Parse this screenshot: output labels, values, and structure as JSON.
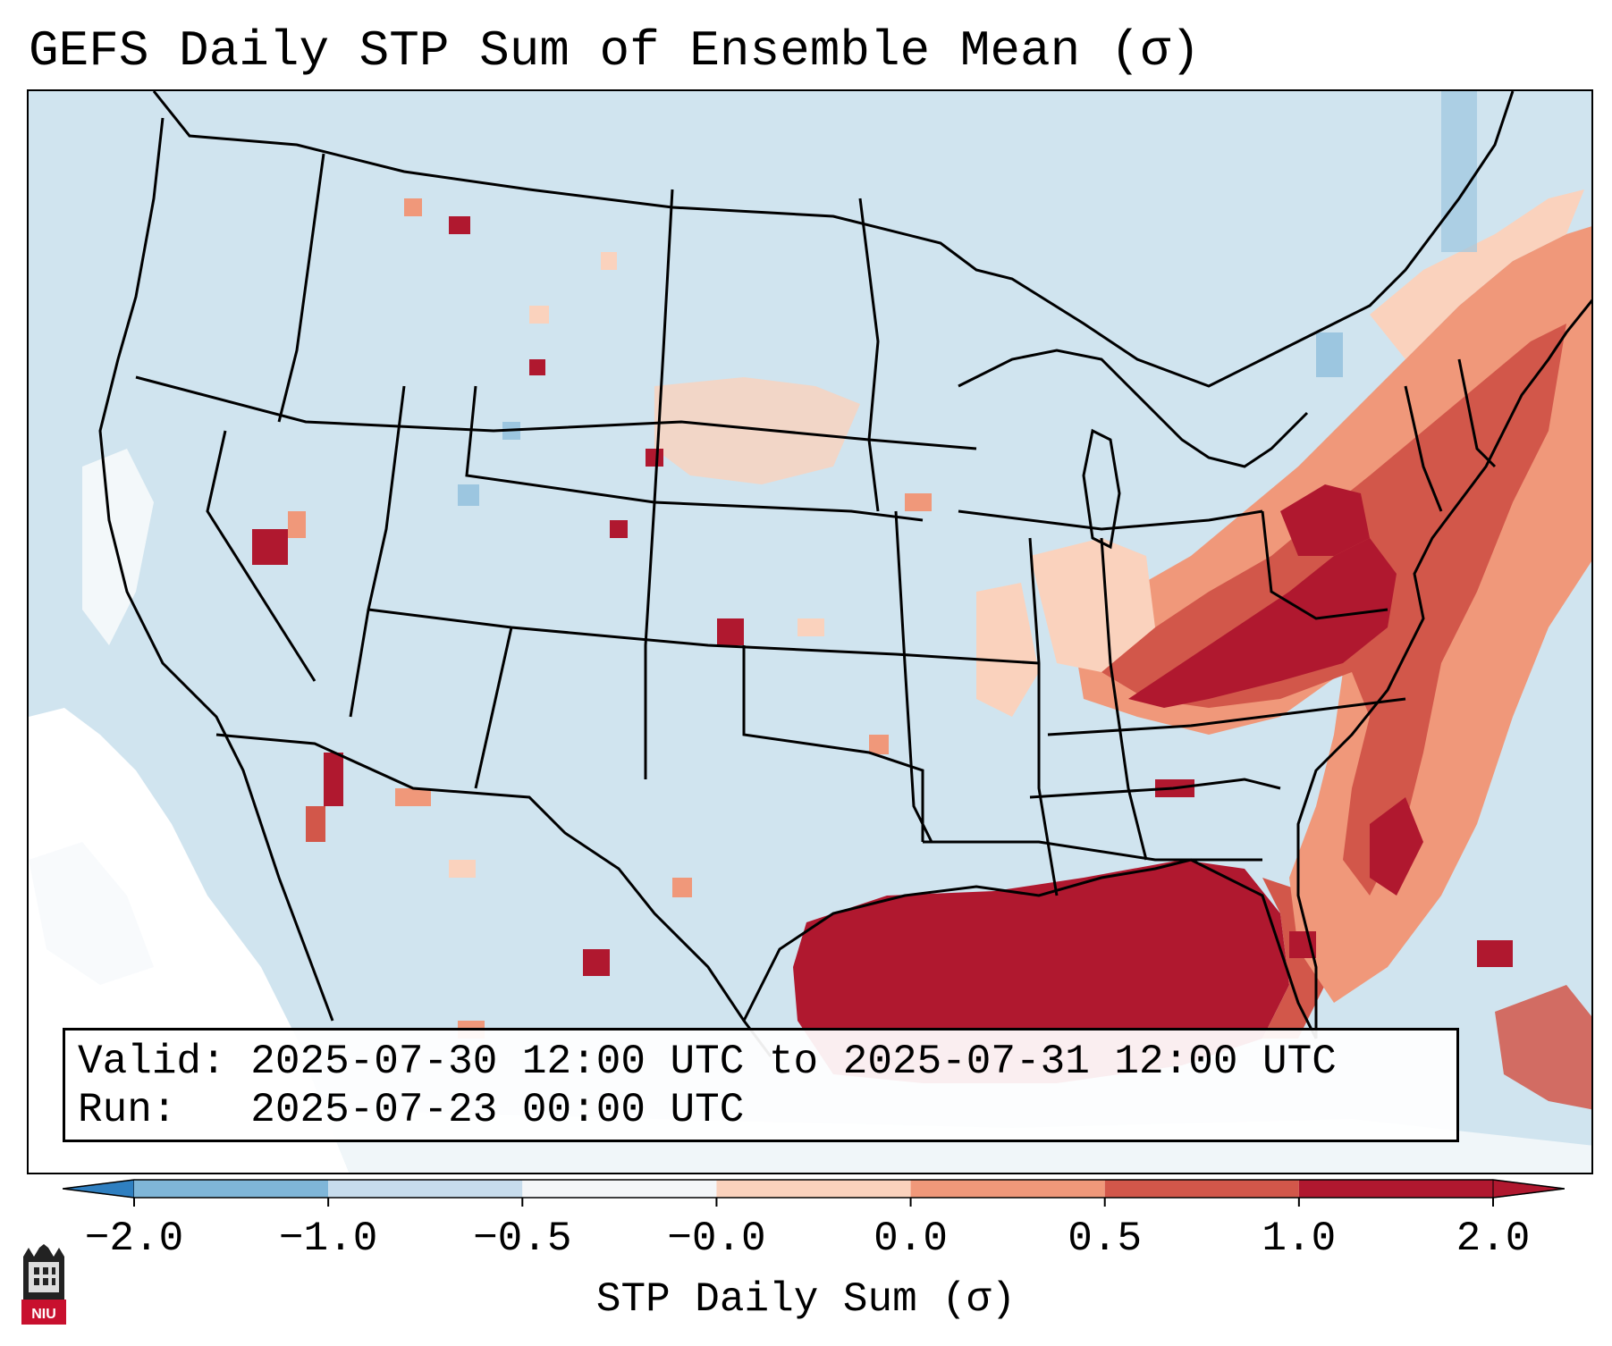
{
  "title": "GEFS Daily STP Sum of Ensemble Mean (σ)",
  "info": {
    "valid_label": "Valid:",
    "valid_value": "2025-07-30 12:00 UTC to 2025-07-31 12:00 UTC",
    "run_label": "Run:",
    "run_value": "2025-07-23 00:00 UTC"
  },
  "colorbar": {
    "label": "STP Daily Sum (σ)",
    "ticks": [
      "−2.0",
      "−1.0",
      "−0.5",
      "−0.0",
      "0.0",
      "0.5",
      "1.0",
      "2.0"
    ],
    "colors": [
      "#2f7fc0",
      "#7fb6d8",
      "#c7dcec",
      "#f4f6f8",
      "#fad2bd",
      "#f0987a",
      "#d2574a",
      "#b0182f"
    ],
    "extend": "both"
  },
  "map": {
    "projection": "Lambert conformal, CONUS",
    "ocean_color": "#d0e4ef",
    "region_labels": []
  },
  "logo": {
    "text": "NIU"
  }
}
